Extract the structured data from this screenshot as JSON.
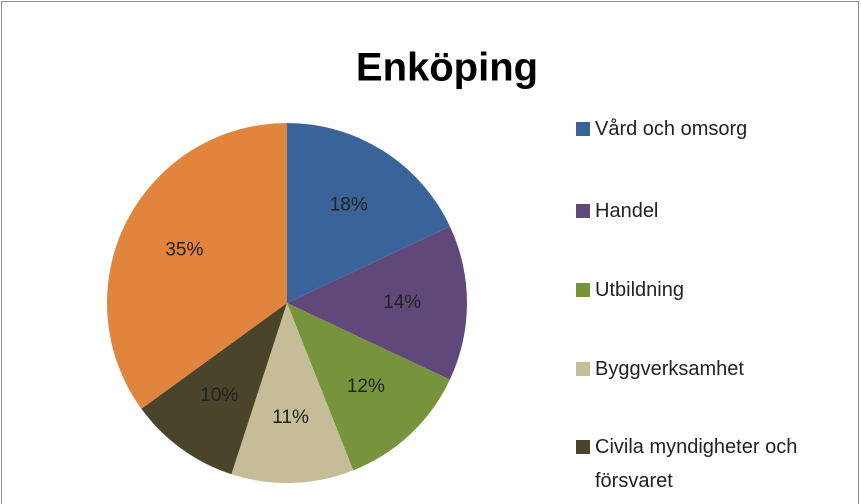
{
  "chart_data": {
    "type": "pie",
    "title": "Enköping",
    "categories": [
      "Vård och omsorg",
      "Handel",
      "Utbildning",
      "Byggverksamhet",
      "Civila myndigheter och försvaret",
      null
    ],
    "values": [
      18,
      14,
      12,
      11,
      10,
      35
    ],
    "value_labels": [
      "18%",
      "14%",
      "12%",
      "11%",
      "10%",
      "35%"
    ],
    "colors": [
      "#3a6399",
      "#60497a",
      "#77933c",
      "#c4bd97",
      "#4a452a",
      "#e0843e"
    ],
    "legend": "right"
  }
}
